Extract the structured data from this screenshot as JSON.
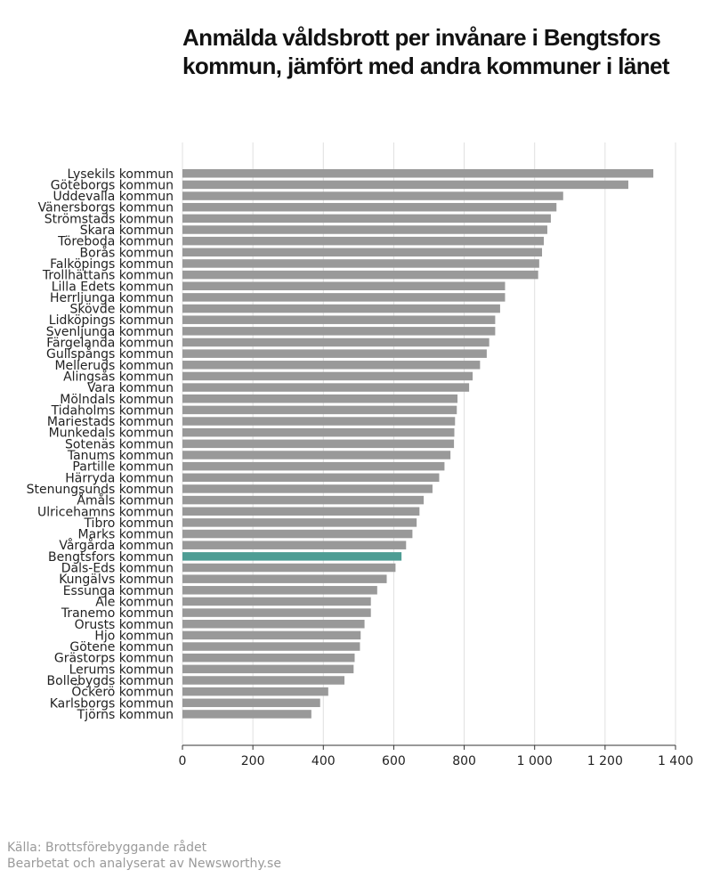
{
  "title_lines": [
    "Anmälda våldsbrott per invånare i Bengtsfors",
    "kommun, jämfört med andra kommuner i länet"
  ],
  "source_lines": [
    "Källa: Brottsförebyggande rådet",
    "Bearbetat och analyserat av Newsworthy.se"
  ],
  "colors": {
    "bar": "#999999",
    "highlight": "#4e9d94",
    "grid": "#e0e0e0",
    "axis": "#333333"
  },
  "chart_data": {
    "type": "bar",
    "orientation": "horizontal",
    "title": "Anmälda våldsbrott per invånare i Bengtsfors kommun, jämfört med andra kommuner i länet",
    "xlabel": "",
    "ylabel": "",
    "xlim": [
      0,
      1400
    ],
    "xticks": [
      0,
      200,
      400,
      600,
      800,
      1000,
      1200,
      1400
    ],
    "xtick_labels": [
      "0",
      "200",
      "400",
      "600",
      "800",
      "1 000",
      "1 200",
      "1 400"
    ],
    "grid": true,
    "highlight": "Bengtsfors kommun",
    "categories": [
      "Lysekils kommun",
      "Göteborgs kommun",
      "Uddevalla kommun",
      "Vänersborgs kommun",
      "Strömstads kommun",
      "Skara kommun",
      "Töreboda kommun",
      "Borås kommun",
      "Falköpings kommun",
      "Trollhättans kommun",
      "Lilla Edets kommun",
      "Herrljunga kommun",
      "Skövde kommun",
      "Lidköpings kommun",
      "Svenljunga kommun",
      "Färgelanda kommun",
      "Gullspångs kommun",
      "Melleruds kommun",
      "Alingsås kommun",
      "Vara kommun",
      "Mölndals kommun",
      "Tidaholms kommun",
      "Mariestads kommun",
      "Munkedals kommun",
      "Sotenäs kommun",
      "Tanums kommun",
      "Partille kommun",
      "Härryda kommun",
      "Stenungsunds kommun",
      "Åmåls kommun",
      "Ulricehamns kommun",
      "Tibro kommun",
      "Marks kommun",
      "Vårgårda kommun",
      "Bengtsfors kommun",
      "Dals-Eds kommun",
      "Kungälvs kommun",
      "Essunga kommun",
      "Ale kommun",
      "Tranemo kommun",
      "Orusts kommun",
      "Hjo kommun",
      "Götene kommun",
      "Grästorps kommun",
      "Lerums kommun",
      "Bollebygds kommun",
      "Öckerö kommun",
      "Karlsborgs kommun",
      "Tjörns kommun"
    ],
    "values": [
      1337,
      1266,
      1081,
      1062,
      1046,
      1036,
      1026,
      1021,
      1013,
      1010,
      916,
      916,
      902,
      888,
      888,
      871,
      864,
      845,
      824,
      814,
      781,
      779,
      774,
      772,
      771,
      761,
      744,
      729,
      710,
      685,
      673,
      665,
      653,
      635,
      622,
      605,
      580,
      553,
      535,
      535,
      517,
      506,
      504,
      489,
      486,
      460,
      414,
      391,
      366
    ]
  }
}
